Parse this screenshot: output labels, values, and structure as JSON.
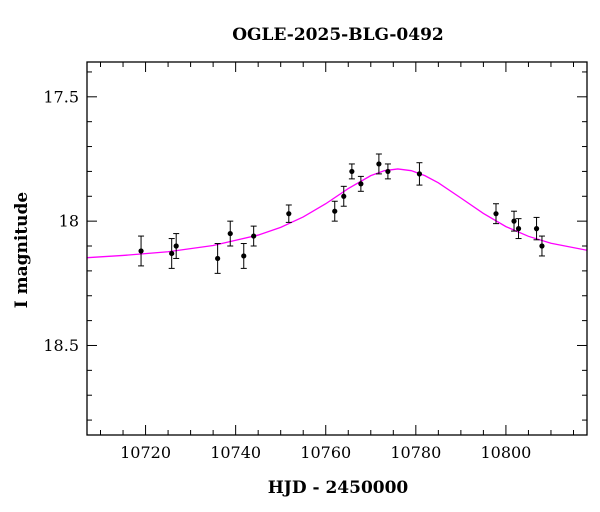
{
  "chart_data": {
    "type": "scatter",
    "title": "OGLE-2025-BLG-0492",
    "xlabel": "HJD - 2450000",
    "ylabel": "I magnitude",
    "xlim": [
      10707,
      10818
    ],
    "ylim": [
      18.86,
      17.36
    ],
    "y_inverted": true,
    "x_major_ticks": [
      10720,
      10740,
      10760,
      10780,
      10800
    ],
    "x_tick_labels": [
      "10720",
      "10740",
      "10760",
      "10780",
      "10800"
    ],
    "x_minor_step": 5,
    "y_major_ticks": [
      17.5,
      18.0,
      18.5
    ],
    "y_tick_labels": [
      "17.5",
      "18",
      "18.5"
    ],
    "y_minor_step": 0.1,
    "grid": false,
    "colors": {
      "points": "#000000",
      "model": "#ff00ff",
      "axes": "#000000"
    },
    "series": [
      {
        "type": "errorbar",
        "x": [
          10719,
          10725.8,
          10726.8,
          10736,
          10738.8,
          10741.8,
          10744,
          10751.8,
          10762,
          10764,
          10765.8,
          10767.8,
          10771.8,
          10773.8,
          10780.8,
          10797.8,
          10801.8,
          10802.8,
          10806.8,
          10808
        ],
        "y": [
          18.12,
          18.13,
          18.1,
          18.15,
          18.05,
          18.14,
          18.06,
          17.97,
          17.96,
          17.9,
          17.8,
          17.85,
          17.77,
          17.8,
          17.81,
          17.97,
          18.0,
          18.03,
          18.03,
          18.1
        ],
        "yerr": [
          0.06,
          0.06,
          0.05,
          0.06,
          0.05,
          0.05,
          0.04,
          0.035,
          0.04,
          0.04,
          0.03,
          0.03,
          0.04,
          0.03,
          0.045,
          0.04,
          0.04,
          0.04,
          0.045,
          0.04
        ]
      },
      {
        "type": "line",
        "model": "microlensing",
        "x": [
          10707,
          10715,
          10725,
          10735,
          10745,
          10750,
          10755,
          10760,
          10765,
          10770,
          10773,
          10776,
          10779,
          10782,
          10785,
          10790,
          10795,
          10800,
          10805,
          10810,
          10818
        ],
        "y": [
          18.147,
          18.138,
          18.123,
          18.098,
          18.056,
          18.025,
          17.983,
          17.93,
          17.869,
          17.817,
          17.797,
          17.79,
          17.797,
          17.817,
          17.846,
          17.907,
          17.969,
          18.022,
          18.061,
          18.089,
          18.117
        ]
      }
    ]
  }
}
